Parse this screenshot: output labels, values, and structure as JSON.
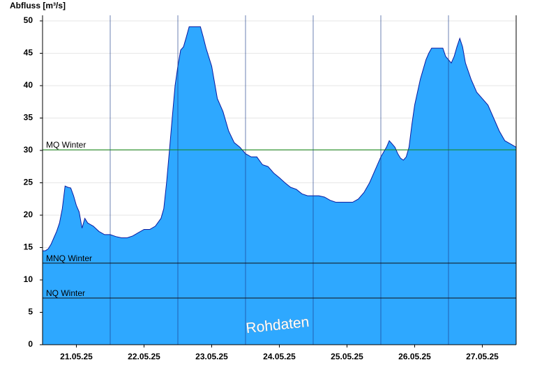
{
  "chart_data": {
    "type": "area",
    "ylabel": "Abfluss [m³/s]",
    "annotation": "Rohdaten",
    "color": "#2ea8ff",
    "line_color": "#0a1aa0",
    "grid": true,
    "xlim": [
      0,
      168
    ],
    "xticks": [
      {
        "value": 12,
        "label": "21.05.25"
      },
      {
        "value": 36,
        "label": "22.05.25"
      },
      {
        "value": 60,
        "label": "23.05.25"
      },
      {
        "value": 84,
        "label": "24.05.25"
      },
      {
        "value": 108,
        "label": "25.05.25"
      },
      {
        "value": 132,
        "label": "26.05.25"
      },
      {
        "value": 156,
        "label": "27.05.25"
      }
    ],
    "xgrid": [
      24,
      48,
      72,
      96,
      120,
      144
    ],
    "ylim": [
      0,
      50
    ],
    "yticks": [
      0,
      5,
      10,
      15,
      20,
      25,
      30,
      35,
      40,
      45,
      50
    ],
    "ref_lines": [
      {
        "label": "MQ Winter",
        "value": 30.1,
        "color": "#118811"
      },
      {
        "label": "MNQ Winter",
        "value": 12.6,
        "color": "#111111"
      },
      {
        "label": "NQ Winter",
        "value": 7.2,
        "color": "#111111"
      }
    ],
    "x": [
      0,
      1,
      2,
      3,
      4,
      5,
      6,
      7,
      8,
      9,
      10,
      11,
      12,
      13,
      14,
      15,
      16,
      18,
      20,
      22,
      24,
      26,
      28,
      30,
      32,
      34,
      36,
      38,
      40,
      42,
      43,
      44,
      45,
      46,
      47,
      48,
      49,
      50,
      51,
      52,
      54,
      56,
      57,
      58,
      60,
      62,
      64,
      66,
      68,
      70,
      72,
      74,
      76,
      78,
      80,
      82,
      84,
      86,
      88,
      90,
      92,
      94,
      96,
      98,
      100,
      102,
      104,
      106,
      108,
      110,
      112,
      114,
      116,
      118,
      120,
      122,
      123,
      124,
      125,
      126,
      127,
      128,
      129,
      130,
      131,
      132,
      134,
      136,
      137,
      138,
      140,
      142,
      143,
      144,
      145,
      146,
      147,
      148,
      149,
      150,
      152,
      154,
      156,
      158,
      160,
      162,
      164,
      166,
      168
    ],
    "values": [
      14.5,
      14.5,
      14.8,
      15.5,
      16.5,
      17.5,
      18.8,
      21,
      24.5,
      24.3,
      24.2,
      23,
      21.5,
      20.5,
      18,
      19.5,
      18.8,
      18.3,
      17.5,
      17,
      17,
      16.7,
      16.5,
      16.5,
      16.8,
      17.3,
      17.8,
      17.8,
      18.3,
      19.5,
      21,
      25,
      30,
      35,
      40,
      43,
      45.5,
      46,
      47.5,
      49.1,
      49.1,
      49.1,
      47.5,
      45.8,
      43,
      38,
      36,
      33,
      31.2,
      30.5,
      29.5,
      29,
      29,
      27.8,
      27.5,
      26.5,
      25.8,
      25,
      24.3,
      24,
      23.3,
      23,
      23,
      23,
      22.8,
      22.3,
      22,
      22,
      22,
      22,
      22.5,
      23.5,
      25,
      27,
      29,
      30.5,
      31.5,
      31,
      30.5,
      29.5,
      28.8,
      28.5,
      29,
      30.5,
      34,
      37,
      41,
      44,
      45,
      45.8,
      45.8,
      45.8,
      44.5,
      44,
      43.5,
      44.5,
      46,
      47.3,
      46,
      43.5,
      41,
      39,
      38,
      37,
      35,
      33,
      31.5,
      31,
      30.5
    ]
  }
}
